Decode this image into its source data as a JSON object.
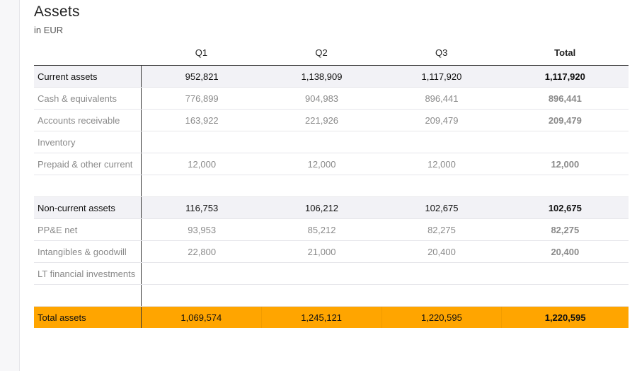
{
  "header": {
    "title": "Assets",
    "subtitle": "in EUR"
  },
  "columns": [
    "Q1",
    "Q2",
    "Q3",
    "Total"
  ],
  "rows": [
    {
      "label": "Current assets",
      "values": [
        "952,821",
        "1,138,909",
        "1,117,920",
        "1,117,920"
      ]
    },
    {
      "label": "Cash & equivalents",
      "values": [
        "776,899",
        "904,983",
        "896,441",
        "896,441"
      ]
    },
    {
      "label": "Accounts receivable",
      "values": [
        "163,922",
        "221,926",
        "209,479",
        "209,479"
      ]
    },
    {
      "label": "Inventory",
      "values": [
        "",
        "",
        "",
        ""
      ]
    },
    {
      "label": "Prepaid & other current",
      "values": [
        "12,000",
        "12,000",
        "12,000",
        "12,000"
      ]
    },
    {
      "label": "",
      "values": [
        "",
        "",
        "",
        ""
      ]
    },
    {
      "label": "Non-current assets",
      "values": [
        "116,753",
        "106,212",
        "102,675",
        "102,675"
      ]
    },
    {
      "label": "PP&E net",
      "values": [
        "93,953",
        "85,212",
        "82,275",
        "82,275"
      ]
    },
    {
      "label": "Intangibles & goodwill",
      "values": [
        "22,800",
        "21,000",
        "20,400",
        "20,400"
      ]
    },
    {
      "label": "LT financial investments",
      "values": [
        "",
        "",
        "",
        ""
      ]
    },
    {
      "label": "",
      "values": [
        "",
        "",
        "",
        ""
      ]
    },
    {
      "label": "Total assets",
      "values": [
        "1,069,574",
        "1,245,121",
        "1,220,595",
        "1,220,595"
      ]
    }
  ],
  "colors": {
    "total_row": "#ffa500",
    "section_row": "#f2f2f6",
    "sub_text": "#8a8a8a"
  }
}
